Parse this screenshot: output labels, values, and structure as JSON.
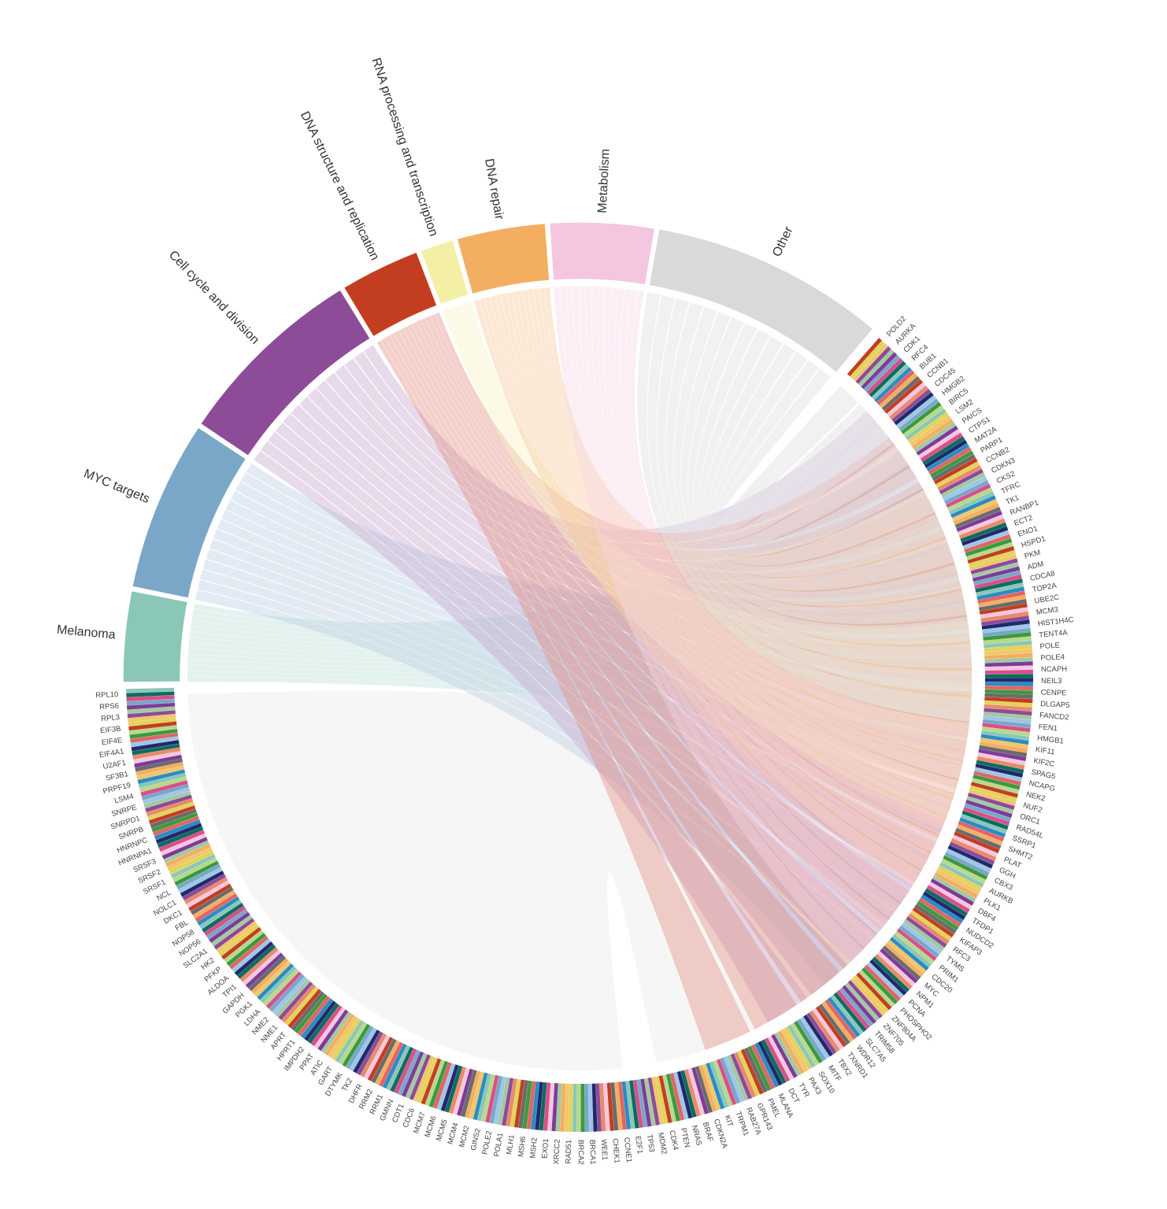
{
  "categories": [
    {
      "name": "Other",
      "color": "#d9d9d9",
      "share": 0.17
    },
    {
      "name": "Metabolism",
      "color": "#f5c6df",
      "share": 0.07
    },
    {
      "name": "DNA repair",
      "color": "#f4ae62",
      "share": 0.058
    },
    {
      "name": "RNA processing and transcription",
      "color": "#f3f0a6",
      "share": 0.022
    },
    {
      "name": "DNA structure and replication",
      "color": "#c33e21",
      "share": 0.05
    },
    {
      "name": "Cell cycle and division",
      "color": "#8c4c98",
      "share": 0.137
    },
    {
      "name": "MYC targets",
      "color": "#7aa7c7",
      "share": 0.102
    },
    {
      "name": "Melanoma",
      "color": "#8ac7b7",
      "share": 0.052
    },
    {
      "name": "",
      "color": "#f0f0f0",
      "share": 0.334
    }
  ],
  "gene_labels": [
    "POLD2",
    "AURKA",
    "CDK1",
    "RFC4",
    "BUB1",
    "CCNB1",
    "CDC45",
    "HMGB2",
    "BIRC5",
    "LSM2",
    "PAICS",
    "CTPS1",
    "MAT2A",
    "PARP1",
    "CCNB2",
    "CDKN3",
    "CKS2",
    "TFRC",
    "TK1",
    "RANBP1",
    "ECT2",
    "ENO1",
    "HSPD1",
    "PKM",
    "ADM",
    "CDCA8",
    "TOP2A",
    "UBE2C",
    "MCM3",
    "HIST1H4C",
    "TENT4A",
    "POLE",
    "POLE4",
    "NCAPH",
    "NEIL3",
    "CENPE",
    "DLGAP5",
    "FANCD2",
    "FEN1",
    "HMGB1",
    "KIF11",
    "KIF2C",
    "SPAG5",
    "NCAPG",
    "NEK2",
    "NUF2",
    "ORC1",
    "RAD54L",
    "SSRP1",
    "SHMT2",
    "PLAT",
    "GGH",
    "CBX3",
    "AURKB",
    "PLK1",
    "DBF4",
    "TFDP1",
    "NUDCD2",
    "KIFAP3",
    "RFC3",
    "TYMS",
    "PRIM1",
    "CDC20",
    "MYC",
    "NPM1",
    "PCNA",
    "PHOSPHO2",
    "ZNF804A",
    "ZNF705",
    "TRIM58",
    "SLC7A5",
    "WDR12",
    "TXNRD1",
    "TBX2",
    "MITF",
    "SOX10",
    "PAX3",
    "TYR",
    "DCT",
    "MLANA",
    "PMEL",
    "GPR143",
    "RAB27A",
    "TRPM1",
    "KIT",
    "CDKN2A",
    "BRAF",
    "NRAS",
    "PTEN",
    "CDK4",
    "MDM2",
    "TP53",
    "E2F1",
    "CCNE1",
    "CHEK1",
    "WEE1",
    "BRCA1",
    "BRCA2",
    "RAD51",
    "XRCC2",
    "EXO1",
    "MSH2",
    "MSH6",
    "MLH1",
    "POLA1",
    "POLE2",
    "GINS2",
    "MCM2",
    "MCM4",
    "MCM5",
    "MCM6",
    "MCM7",
    "CDC6",
    "CDT1",
    "GMNN",
    "RRM1",
    "RRM2",
    "DHFR",
    "TK2",
    "DTYMK",
    "GART",
    "ATIC",
    "PPAT",
    "IMPDH2",
    "HPRT1",
    "APRT",
    "NME1",
    "NME2",
    "LDHA",
    "PGK1",
    "GAPDH",
    "TPI1",
    "ALDOA",
    "PFKP",
    "HK2",
    "SLC2A1",
    "NOP56",
    "NOP58",
    "FBL",
    "DKC1",
    "NOLC1",
    "NCL",
    "SRSF1",
    "SRSF2",
    "SRSF3",
    "HNRNPA1",
    "HNRNPC",
    "SNRPB",
    "SNRPD1",
    "SNRPE",
    "LSM4",
    "PRPF19",
    "SF3B1",
    "U2AF1",
    "EIF4A1",
    "EIF4E",
    "EIF3B",
    "RPL3",
    "RPS6",
    "RPL10"
  ]
}
